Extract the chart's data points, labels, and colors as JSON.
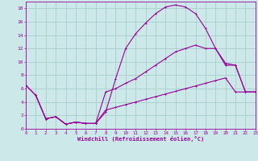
{
  "xlabel": "Windchill (Refroidissement éolien,°C)",
  "bg_color": "#cce8e8",
  "line_color": "#990099",
  "grid_color": "#aacccc",
  "curve1_x": [
    1,
    2,
    3,
    4,
    5,
    6,
    7,
    8,
    9,
    10,
    11,
    12,
    13,
    14,
    15,
    16,
    17,
    18,
    19,
    20,
    21,
    22,
    23
  ],
  "curve1_y": [
    5.0,
    1.5,
    1.8,
    0.7,
    1.0,
    0.8,
    0.8,
    2.5,
    7.5,
    12.0,
    14.2,
    15.8,
    17.2,
    18.2,
    18.5,
    18.2,
    17.2,
    15.0,
    12.0,
    9.5,
    9.5,
    5.5,
    5.5
  ],
  "curve2_x": [
    0,
    1,
    2,
    3,
    4,
    5,
    6,
    7,
    8,
    9,
    10,
    11,
    12,
    13,
    14,
    15,
    16,
    17,
    18,
    19,
    20,
    21,
    22,
    23
  ],
  "curve2_y": [
    6.5,
    5.0,
    1.5,
    1.8,
    0.7,
    1.0,
    0.8,
    0.8,
    5.5,
    6.0,
    6.8,
    7.5,
    8.5,
    9.5,
    10.5,
    11.5,
    12.0,
    12.5,
    12.0,
    12.0,
    9.8,
    9.5,
    5.5,
    5.5
  ],
  "curve3_x": [
    0,
    1,
    2,
    3,
    4,
    5,
    6,
    7,
    8,
    9,
    10,
    11,
    12,
    13,
    14,
    15,
    16,
    17,
    18,
    19,
    20,
    21,
    22,
    23
  ],
  "curve3_y": [
    6.5,
    5.0,
    1.5,
    1.8,
    0.7,
    1.0,
    0.8,
    0.8,
    2.8,
    3.2,
    3.6,
    4.0,
    4.4,
    4.8,
    5.2,
    5.6,
    6.0,
    6.4,
    6.8,
    7.2,
    7.6,
    5.5,
    5.5,
    5.5
  ],
  "xlim": [
    0,
    23
  ],
  "ylim": [
    0,
    19
  ],
  "xticks": [
    0,
    1,
    2,
    3,
    4,
    5,
    6,
    7,
    8,
    9,
    10,
    11,
    12,
    13,
    14,
    15,
    16,
    17,
    18,
    19,
    20,
    21,
    22,
    23
  ],
  "yticks": [
    0,
    2,
    4,
    6,
    8,
    10,
    12,
    14,
    16,
    18
  ]
}
